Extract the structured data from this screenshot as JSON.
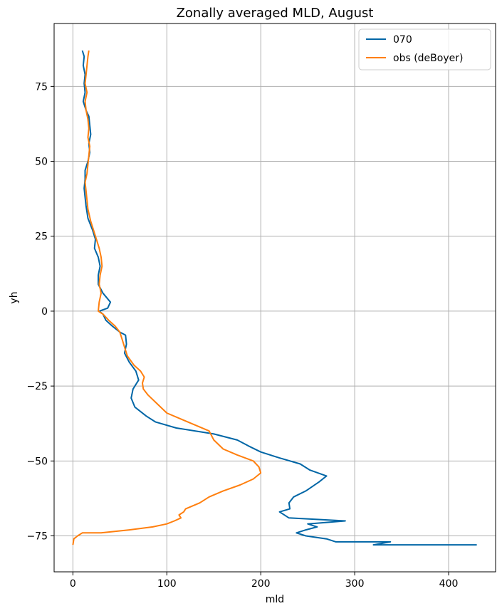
{
  "chart_data": {
    "type": "line",
    "title": "Zonally averaged MLD, August",
    "xlabel": "mld",
    "ylabel": "yh",
    "xlim": [
      -20,
      450
    ],
    "ylim": [
      -87,
      96
    ],
    "x_ticks": [
      0,
      100,
      200,
      300,
      400
    ],
    "y_ticks": [
      -75,
      -50,
      -25,
      0,
      25,
      50,
      75
    ],
    "grid": true,
    "legend_position": "upper right",
    "series": [
      {
        "name": "070",
        "color": "#0066a6",
        "points": [
          [
            10,
            87
          ],
          [
            12,
            85
          ],
          [
            11,
            82
          ],
          [
            13,
            79
          ],
          [
            12,
            76
          ],
          [
            13,
            73
          ],
          [
            11,
            70
          ],
          [
            14,
            67
          ],
          [
            17,
            65
          ],
          [
            18,
            62
          ],
          [
            19,
            59
          ],
          [
            17,
            56
          ],
          [
            18,
            53
          ],
          [
            16,
            50
          ],
          [
            13,
            47
          ],
          [
            13,
            44
          ],
          [
            12,
            41
          ],
          [
            13,
            38
          ],
          [
            14,
            35
          ],
          [
            16,
            31
          ],
          [
            21,
            27
          ],
          [
            24,
            24
          ],
          [
            23,
            21
          ],
          [
            27,
            18
          ],
          [
            29,
            15
          ],
          [
            27,
            12
          ],
          [
            27,
            9
          ],
          [
            32,
            6
          ],
          [
            40,
            3
          ],
          [
            37,
            1
          ],
          [
            28,
            0
          ],
          [
            32,
            -1
          ],
          [
            35,
            -3
          ],
          [
            42,
            -5
          ],
          [
            50,
            -7
          ],
          [
            56,
            -8
          ],
          [
            57,
            -11
          ],
          [
            55,
            -14
          ],
          [
            60,
            -17
          ],
          [
            67,
            -20
          ],
          [
            70,
            -23
          ],
          [
            64,
            -26
          ],
          [
            62,
            -29
          ],
          [
            66,
            -32
          ],
          [
            70,
            -33
          ],
          [
            78,
            -35
          ],
          [
            88,
            -37
          ],
          [
            110,
            -39
          ],
          [
            150,
            -41
          ],
          [
            175,
            -43
          ],
          [
            187,
            -45
          ],
          [
            200,
            -47
          ],
          [
            220,
            -49
          ],
          [
            242,
            -51
          ],
          [
            252,
            -53
          ],
          [
            270,
            -55
          ],
          [
            262,
            -57
          ],
          [
            248,
            -60
          ],
          [
            235,
            -62
          ],
          [
            230,
            -64
          ],
          [
            231,
            -66
          ],
          [
            220,
            -67
          ],
          [
            230,
            -69
          ],
          [
            290,
            -70
          ],
          [
            250,
            -71
          ],
          [
            260,
            -72
          ],
          [
            248,
            -73
          ],
          [
            238,
            -74
          ],
          [
            248,
            -75
          ],
          [
            270,
            -76
          ],
          [
            280,
            -77
          ],
          [
            338,
            -77
          ],
          [
            320,
            -78
          ],
          [
            400,
            -78
          ],
          [
            430,
            -78
          ]
        ]
      },
      {
        "name": "obs (deBoyer)",
        "color": "#ff7f0e",
        "points": [
          [
            17,
            87
          ],
          [
            16,
            85
          ],
          [
            15,
            82
          ],
          [
            14,
            79
          ],
          [
            13,
            76
          ],
          [
            15,
            73
          ],
          [
            13,
            70
          ],
          [
            14,
            67
          ],
          [
            16,
            64
          ],
          [
            17,
            61
          ],
          [
            16,
            58
          ],
          [
            18,
            55
          ],
          [
            17,
            52
          ],
          [
            16,
            49
          ],
          [
            15,
            46
          ],
          [
            13,
            43
          ],
          [
            14,
            40
          ],
          [
            15,
            37
          ],
          [
            16,
            34
          ],
          [
            19,
            30
          ],
          [
            22,
            27
          ],
          [
            25,
            24
          ],
          [
            28,
            21
          ],
          [
            30,
            18
          ],
          [
            31,
            15
          ],
          [
            29,
            12
          ],
          [
            28,
            9
          ],
          [
            30,
            6
          ],
          [
            28,
            3
          ],
          [
            27,
            0
          ],
          [
            32,
            -1
          ],
          [
            38,
            -3
          ],
          [
            45,
            -5
          ],
          [
            50,
            -7
          ],
          [
            52,
            -9
          ],
          [
            55,
            -12
          ],
          [
            58,
            -15
          ],
          [
            65,
            -18
          ],
          [
            72,
            -20
          ],
          [
            76,
            -22
          ],
          [
            74,
            -24
          ],
          [
            75,
            -26
          ],
          [
            80,
            -28
          ],
          [
            90,
            -31
          ],
          [
            100,
            -34
          ],
          [
            115,
            -36
          ],
          [
            130,
            -38
          ],
          [
            145,
            -40
          ],
          [
            150,
            -43
          ],
          [
            160,
            -46
          ],
          [
            175,
            -48
          ],
          [
            192,
            -50
          ],
          [
            198,
            -52
          ],
          [
            200,
            -54
          ],
          [
            192,
            -56
          ],
          [
            178,
            -58
          ],
          [
            160,
            -60
          ],
          [
            145,
            -62
          ],
          [
            135,
            -64
          ],
          [
            120,
            -66
          ],
          [
            118,
            -67
          ],
          [
            113,
            -68
          ],
          [
            115,
            -69
          ],
          [
            108,
            -70
          ],
          [
            100,
            -71
          ],
          [
            85,
            -72
          ],
          [
            60,
            -73
          ],
          [
            30,
            -74
          ],
          [
            10,
            -74
          ],
          [
            5,
            -75
          ],
          [
            1,
            -76
          ],
          [
            0,
            -78
          ]
        ]
      }
    ]
  }
}
